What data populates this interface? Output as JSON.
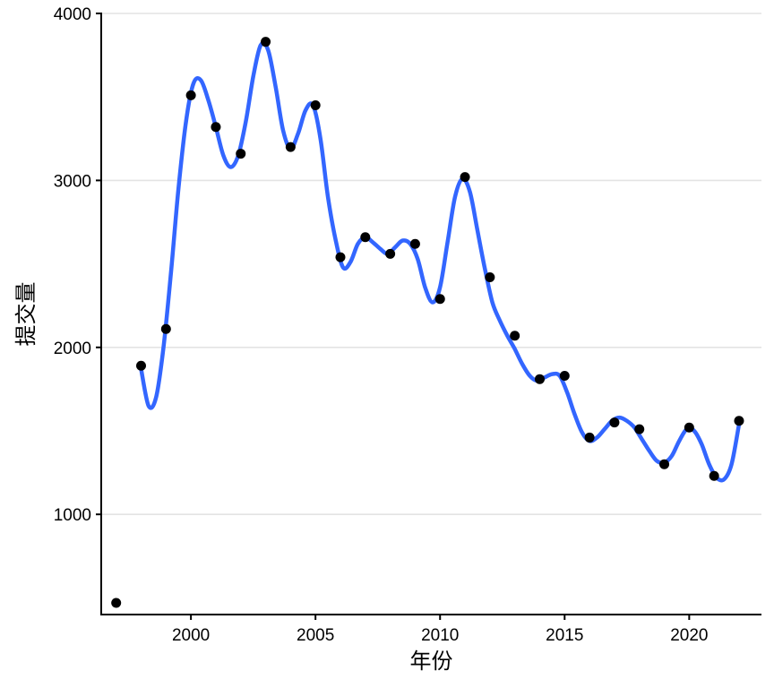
{
  "chart_data": {
    "type": "scatter",
    "title": "",
    "xlabel": "年份",
    "ylabel": "提交量",
    "xlim": [
      1996.4,
      2022.9
    ],
    "ylim": [
      400,
      4000
    ],
    "x_ticks": [
      2000,
      2005,
      2010,
      2015,
      2020
    ],
    "x_tick_labels": [
      "2000",
      "2005",
      "2010",
      "2015",
      "2020"
    ],
    "y_ticks": [
      1000,
      2000,
      3000,
      4000
    ],
    "y_tick_labels": [
      "1000",
      "2000",
      "3000",
      "4000"
    ],
    "grid": "horizontal major gridlines",
    "legend": "none",
    "series": [
      {
        "kind": "points",
        "color": "#000000",
        "x": [
          1997,
          1998,
          1999,
          2000,
          2001,
          2002,
          2003,
          2004,
          2005,
          2006,
          2007,
          2008,
          2009,
          2010,
          2011,
          2012,
          2013,
          2014,
          2015,
          2016,
          2017,
          2018,
          2019,
          2020,
          2021,
          2022
        ],
        "y": [
          470,
          1890,
          2110,
          3510,
          3320,
          3160,
          3830,
          3200,
          3450,
          2540,
          2660,
          2560,
          2620,
          2290,
          3020,
          2420,
          2070,
          1810,
          1830,
          1460,
          1550,
          1510,
          1300,
          1520,
          1230,
          1560
        ]
      },
      {
        "kind": "smooth-line",
        "color": "#3366ff",
        "x": [
          1998.0,
          1998.3,
          1998.6,
          1998.9,
          1999.2,
          1999.5,
          1999.8,
          2000.1,
          2000.4,
          2000.7,
          2001.0,
          2001.3,
          2001.6,
          2001.9,
          2002.2,
          2002.5,
          2002.8,
          2003.1,
          2003.4,
          2003.7,
          2004.0,
          2004.3,
          2004.6,
          2004.9,
          2005.2,
          2005.5,
          2005.8,
          2006.1,
          2006.4,
          2006.7,
          2007.0,
          2007.3,
          2007.6,
          2007.9,
          2008.2,
          2008.5,
          2008.8,
          2009.1,
          2009.4,
          2009.7,
          2010.0,
          2010.3,
          2010.6,
          2010.9,
          2011.2,
          2011.5,
          2011.8,
          2012.1,
          2012.4,
          2012.7,
          2013.0,
          2013.3,
          2013.6,
          2013.9,
          2014.2,
          2014.5,
          2014.8,
          2015.1,
          2015.4,
          2015.7,
          2016.0,
          2016.3,
          2016.6,
          2016.9,
          2017.2,
          2017.5,
          2017.8,
          2018.1,
          2018.4,
          2018.7,
          2019.0,
          2019.3,
          2019.6,
          2019.9,
          2020.2,
          2020.5,
          2020.8,
          2021.1,
          2021.4,
          2021.7,
          2022.0
        ],
        "y": [
          1870,
          1650,
          1700,
          2000,
          2450,
          2950,
          3350,
          3580,
          3600,
          3480,
          3320,
          3150,
          3080,
          3150,
          3350,
          3620,
          3810,
          3780,
          3560,
          3300,
          3190,
          3280,
          3420,
          3450,
          3250,
          2900,
          2650,
          2480,
          2510,
          2620,
          2660,
          2630,
          2590,
          2560,
          2600,
          2640,
          2620,
          2530,
          2360,
          2270,
          2360,
          2630,
          2900,
          3010,
          2930,
          2700,
          2470,
          2270,
          2160,
          2070,
          1990,
          1900,
          1830,
          1800,
          1820,
          1840,
          1830,
          1730,
          1600,
          1490,
          1440,
          1460,
          1510,
          1560,
          1580,
          1560,
          1520,
          1450,
          1380,
          1320,
          1310,
          1350,
          1440,
          1510,
          1500,
          1420,
          1300,
          1220,
          1210,
          1300,
          1540
        ]
      }
    ]
  }
}
